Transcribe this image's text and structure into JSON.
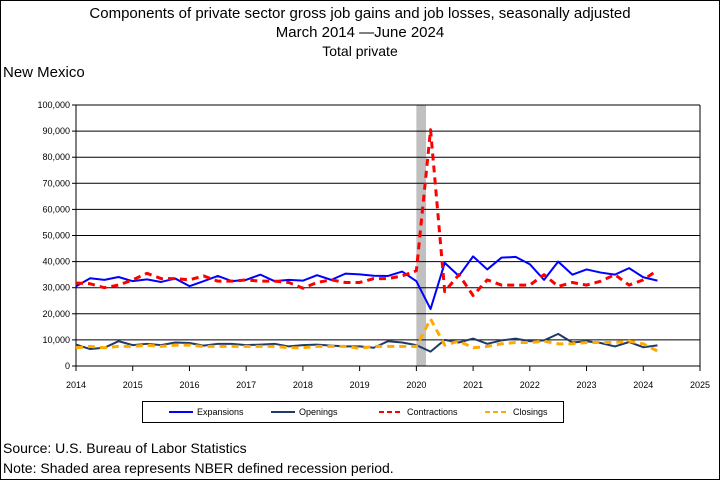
{
  "header": {
    "title_line1": "Components of private sector gross job gains and job losses, seasonally adjusted",
    "title_line2": "March 2014 —June 2024",
    "title_line3": "Total private"
  },
  "region": "New Mexico",
  "footer": {
    "source": "Source: U.S. Bureau of Labor Statistics",
    "note": "Note: Shaded area represents NBER defined recession period."
  },
  "chart_data": {
    "type": "line",
    "title": "Components of private sector gross job gains and job losses, seasonally adjusted",
    "subtitle": "March 2014 —June 2024 Total private",
    "xlim": [
      2014,
      2025
    ],
    "ylim": [
      0,
      100000
    ],
    "x_ticks": [
      "2014",
      "2015",
      "2016",
      "2017",
      "2018",
      "2019",
      "2020",
      "2021",
      "2022",
      "2023",
      "2024",
      "2025"
    ],
    "y_ticks": [
      "0",
      "10,000",
      "20,000",
      "30,000",
      "40,000",
      "50,000",
      "60,000",
      "70,000",
      "80,000",
      "90,000",
      "100,000"
    ],
    "grid": true,
    "legend_position": "bottom",
    "recession_band": [
      2020.0,
      2020.17
    ],
    "colors": {
      "expansions": "#0000ff",
      "openings": "#1f3a68",
      "contractions": "#ff0000",
      "closings": "#ffaa00",
      "recession": "#c0c0c0"
    },
    "x": [
      2014.0,
      2014.25,
      2014.5,
      2014.75,
      2015.0,
      2015.25,
      2015.5,
      2015.75,
      2016.0,
      2016.25,
      2016.5,
      2016.75,
      2017.0,
      2017.25,
      2017.5,
      2017.75,
      2018.0,
      2018.25,
      2018.5,
      2018.75,
      2019.0,
      2019.25,
      2019.5,
      2019.75,
      2020.0,
      2020.25,
      2020.5,
      2020.75,
      2021.0,
      2021.25,
      2021.5,
      2021.75,
      2022.0,
      2022.25,
      2022.5,
      2022.75,
      2023.0,
      2023.25,
      2023.5,
      2023.75,
      2024.0,
      2024.25
    ],
    "series": [
      {
        "name": "Expansions",
        "style": "solid",
        "color": "#0000ff",
        "values": [
          30500,
          33600,
          33000,
          34100,
          32500,
          33200,
          32200,
          33500,
          30600,
          32500,
          34500,
          32500,
          33000,
          35000,
          32500,
          33000,
          32700,
          34800,
          33000,
          35400,
          35100,
          34600,
          34500,
          36200,
          32500,
          21800,
          39500,
          34500,
          42000,
          37000,
          41500,
          41800,
          39000,
          33000,
          40000,
          35000,
          37000,
          35800,
          35000,
          37500,
          34000,
          32700
        ]
      },
      {
        "name": "Openings",
        "style": "solid",
        "color": "#1f3a68",
        "values": [
          8200,
          6500,
          7000,
          9500,
          8000,
          8500,
          8000,
          9000,
          8800,
          7800,
          8500,
          8500,
          8000,
          8200,
          8500,
          7500,
          8000,
          8200,
          7800,
          7500,
          7500,
          7000,
          9500,
          9000,
          8000,
          5500,
          10000,
          9000,
          10500,
          8500,
          9800,
          10500,
          9500,
          9800,
          12300,
          9000,
          9500,
          8800,
          7500,
          9200,
          7200,
          7900
        ]
      },
      {
        "name": "Contractions",
        "style": "dash",
        "color": "#ff0000",
        "values": [
          31800,
          31500,
          30000,
          31000,
          33000,
          35500,
          33500,
          33500,
          33000,
          34500,
          32500,
          32500,
          33000,
          32500,
          32500,
          32000,
          29800,
          32000,
          33000,
          32000,
          32000,
          33500,
          33500,
          34500,
          36500,
          90500,
          28500,
          35000,
          27000,
          33000,
          31000,
          31000,
          31000,
          35000,
          30500,
          32000,
          31000,
          32500,
          35000,
          31000,
          33000,
          36700
        ]
      },
      {
        "name": "Closings",
        "style": "dash",
        "color": "#ffaa00",
        "values": [
          7000,
          7500,
          7000,
          7500,
          7500,
          8000,
          7500,
          8000,
          8000,
          7500,
          7500,
          7500,
          7500,
          7500,
          7500,
          7000,
          7000,
          7500,
          7500,
          7500,
          6800,
          7500,
          7500,
          7500,
          7500,
          18000,
          8000,
          9500,
          7000,
          7500,
          8500,
          9000,
          9000,
          9500,
          8500,
          8500,
          9000,
          9000,
          9000,
          9500,
          8500,
          5700
        ]
      }
    ]
  }
}
